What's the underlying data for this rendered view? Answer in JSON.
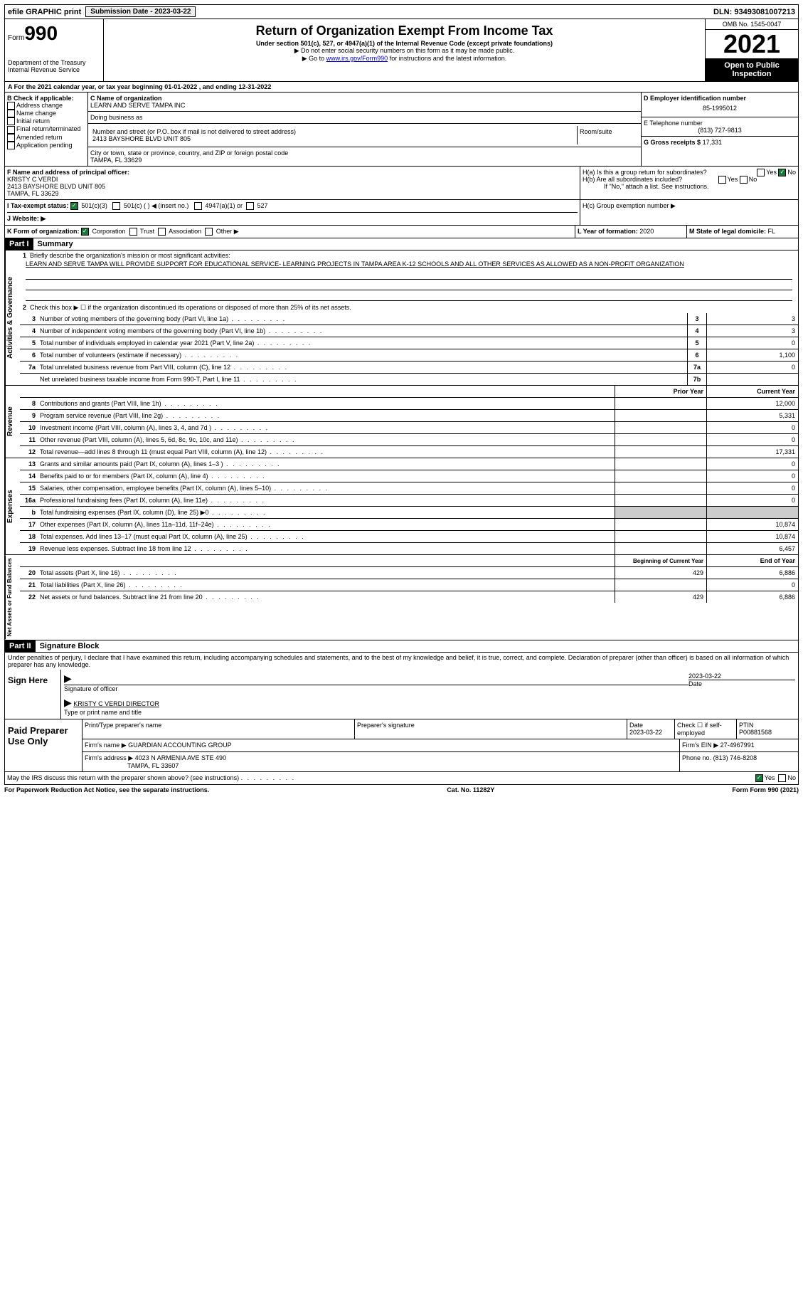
{
  "top_bar": {
    "efile": "efile GRAPHIC print",
    "submission": "Submission Date - 2023-03-22",
    "dln": "DLN: 93493081007213"
  },
  "header": {
    "form_prefix": "Form",
    "form_number": "990",
    "dept": "Department of the Treasury\nInternal Revenue Service",
    "title": "Return of Organization Exempt From Income Tax",
    "subtitle": "Under section 501(c), 527, or 4947(a)(1) of the Internal Revenue Code (except private foundations)",
    "note1": "▶ Do not enter social security numbers on this form as it may be made public.",
    "note2_pre": "▶ Go to ",
    "note2_link": "www.irs.gov/Form990",
    "note2_post": " for instructions and the latest information.",
    "omb": "OMB No. 1545-0047",
    "year": "2021",
    "open": "Open to Public Inspection"
  },
  "section_a": "A For the 2021 calendar year, or tax year beginning 01-01-2022   , and ending 12-31-2022",
  "section_b": {
    "label": "B Check if applicable:",
    "opts": [
      "Address change",
      "Name change",
      "Initial return",
      "Final return/terminated",
      "Amended return",
      "Application pending"
    ]
  },
  "section_c": {
    "name_label": "C Name of organization",
    "name": "LEARN AND SERVE TAMPA INC",
    "dba": "Doing business as",
    "addr_label": "Number and street (or P.O. box if mail is not delivered to street address)",
    "room": "Room/suite",
    "addr": "2413 BAYSHORE BLVD UNIT 805",
    "city_label": "City or town, state or province, country, and ZIP or foreign postal code",
    "city": "TAMPA, FL  33629"
  },
  "section_d": {
    "label": "D Employer identification number",
    "val": "85-1995012"
  },
  "section_e": {
    "label": "E Telephone number",
    "val": "(813) 727-9813"
  },
  "section_g": {
    "label": "G Gross receipts $",
    "val": "17,331"
  },
  "section_f": {
    "label": "F  Name and address of principal officer:",
    "name": "KRISTY C VERDI",
    "addr": "2413 BAYSHORE BLVD UNIT 805",
    "city": "TAMPA, FL  33629"
  },
  "section_h": {
    "a": "H(a)  Is this a group return for subordinates?",
    "b": "H(b)  Are all subordinates included?",
    "b_note": "If \"No,\" attach a list. See instructions.",
    "c": "H(c)  Group exemption number ▶",
    "yes": "Yes",
    "no": "No"
  },
  "section_i": {
    "label": "I   Tax-exempt status:",
    "o1": "501(c)(3)",
    "o2": "501(c) (  ) ◀ (insert no.)",
    "o3": "4947(a)(1) or",
    "o4": "527"
  },
  "section_j": "J   Website: ▶",
  "section_k": {
    "label": "K Form of organization:",
    "o1": "Corporation",
    "o2": "Trust",
    "o3": "Association",
    "o4": "Other ▶"
  },
  "section_l": {
    "label": "L Year of formation:",
    "val": "2020"
  },
  "section_m": {
    "label": "M State of legal domicile:",
    "val": "FL"
  },
  "part1": {
    "header": "Part I",
    "title": "Summary",
    "line1_label": "Briefly describe the organization's mission or most significant activities:",
    "line1_text": "LEARN AND SERVE TAMPA WILL PROVIDE SUPPORT FOR EDUCATIONAL SERVICE- LEARNING PROJECTS IN TAMPA AREA K-12 SCHOOLS AND ALL OTHER SERVICES AS ALLOWED AS A NON-PROFIT ORGANIZATION",
    "line2": "Check this box ▶ ☐  if the organization discontinued its operations or disposed of more than 25% of its net assets.",
    "lines_a": [
      {
        "n": "3",
        "t": "Number of voting members of the governing body (Part VI, line 1a)",
        "b": "3",
        "v": "3"
      },
      {
        "n": "4",
        "t": "Number of independent voting members of the governing body (Part VI, line 1b)",
        "b": "4",
        "v": "3"
      },
      {
        "n": "5",
        "t": "Total number of individuals employed in calendar year 2021 (Part V, line 2a)",
        "b": "5",
        "v": "0"
      },
      {
        "n": "6",
        "t": "Total number of volunteers (estimate if necessary)",
        "b": "6",
        "v": "1,100"
      },
      {
        "n": "7a",
        "t": "Total unrelated business revenue from Part VIII, column (C), line 12",
        "b": "7a",
        "v": "0"
      },
      {
        "n": "",
        "t": "Net unrelated business taxable income from Form 990-T, Part I, line 11",
        "b": "7b",
        "v": ""
      }
    ],
    "col_prior": "Prior Year",
    "col_current": "Current Year",
    "lines_rev": [
      {
        "n": "8",
        "t": "Contributions and grants (Part VIII, line 1h)",
        "p": "",
        "c": "12,000"
      },
      {
        "n": "9",
        "t": "Program service revenue (Part VIII, line 2g)",
        "p": "",
        "c": "5,331"
      },
      {
        "n": "10",
        "t": "Investment income (Part VIII, column (A), lines 3, 4, and 7d )",
        "p": "",
        "c": "0"
      },
      {
        "n": "11",
        "t": "Other revenue (Part VIII, column (A), lines 5, 6d, 8c, 9c, 10c, and 11e)",
        "p": "",
        "c": "0"
      },
      {
        "n": "12",
        "t": "Total revenue—add lines 8 through 11 (must equal Part VIII, column (A), line 12)",
        "p": "",
        "c": "17,331"
      }
    ],
    "lines_exp": [
      {
        "n": "13",
        "t": "Grants and similar amounts paid (Part IX, column (A), lines 1–3 )",
        "p": "",
        "c": "0"
      },
      {
        "n": "14",
        "t": "Benefits paid to or for members (Part IX, column (A), line 4)",
        "p": "",
        "c": "0"
      },
      {
        "n": "15",
        "t": "Salaries, other compensation, employee benefits (Part IX, column (A), lines 5–10)",
        "p": "",
        "c": "0"
      },
      {
        "n": "16a",
        "t": "Professional fundraising fees (Part IX, column (A), line 11e)",
        "p": "",
        "c": "0"
      },
      {
        "n": "b",
        "t": "Total fundraising expenses (Part IX, column (D), line 25) ▶0",
        "p": "shaded",
        "c": "shaded"
      },
      {
        "n": "17",
        "t": "Other expenses (Part IX, column (A), lines 11a–11d, 11f–24e)",
        "p": "",
        "c": "10,874"
      },
      {
        "n": "18",
        "t": "Total expenses. Add lines 13–17 (must equal Part IX, column (A), line 25)",
        "p": "",
        "c": "10,874"
      },
      {
        "n": "19",
        "t": "Revenue less expenses. Subtract line 18 from line 12",
        "p": "",
        "c": "6,457"
      }
    ],
    "col_begin": "Beginning of Current Year",
    "col_end": "End of Year",
    "lines_net": [
      {
        "n": "20",
        "t": "Total assets (Part X, line 16)",
        "p": "429",
        "c": "6,886"
      },
      {
        "n": "21",
        "t": "Total liabilities (Part X, line 26)",
        "p": "",
        "c": "0"
      },
      {
        "n": "22",
        "t": "Net assets or fund balances. Subtract line 21 from line 20",
        "p": "429",
        "c": "6,886"
      }
    ],
    "side_activities": "Activities & Governance",
    "side_revenue": "Revenue",
    "side_expenses": "Expenses",
    "side_net": "Net Assets or Fund Balances"
  },
  "part2": {
    "header": "Part II",
    "title": "Signature Block",
    "declaration": "Under penalties of perjury, I declare that I have examined this return, including accompanying schedules and statements, and to the best of my knowledge and belief, it is true, correct, and complete. Declaration of preparer (other than officer) is based on all information of which preparer has any knowledge.",
    "sign_here": "Sign Here",
    "sig_officer": "Signature of officer",
    "sig_date": "Date",
    "sig_date_val": "2023-03-22",
    "sig_name": "KRISTY C VERDI  DIRECTOR",
    "sig_name_label": "Type or print name and title",
    "paid": "Paid Preparer Use Only",
    "prep_name_label": "Print/Type preparer's name",
    "prep_sig_label": "Preparer's signature",
    "prep_date_label": "Date",
    "prep_date": "2023-03-22",
    "prep_check": "Check ☐ if self-employed",
    "ptin_label": "PTIN",
    "ptin": "P00881568",
    "firm_name_label": "Firm's name    ▶",
    "firm_name": "GUARDIAN ACCOUNTING GROUP",
    "firm_ein_label": "Firm's EIN ▶",
    "firm_ein": "27-4967991",
    "firm_addr_label": "Firm's address ▶",
    "firm_addr": "4023 N ARMENIA AVE STE 490",
    "firm_city": "TAMPA, FL  33607",
    "phone_label": "Phone no.",
    "phone": "(813) 746-8208",
    "discuss": "May the IRS discuss this return with the preparer shown above? (see instructions)",
    "yes": "Yes",
    "no": "No"
  },
  "footer": {
    "paperwork": "For Paperwork Reduction Act Notice, see the separate instructions.",
    "cat": "Cat. No. 11282Y",
    "form": "Form 990 (2021)"
  }
}
